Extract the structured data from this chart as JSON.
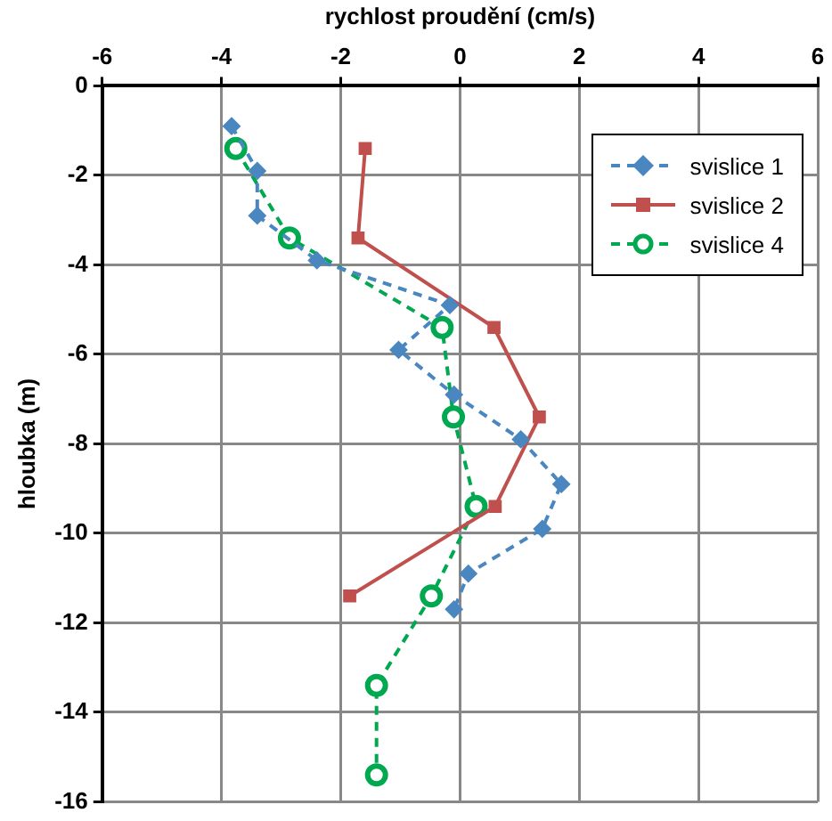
{
  "chart_data": {
    "type": "line",
    "xlabel": "rychlost proudění (cm/s)",
    "ylabel": "hloubka (m)",
    "xlim": [
      -6,
      6
    ],
    "xticks": [
      -6,
      -4,
      -2,
      0,
      2,
      4,
      6
    ],
    "ylim": [
      -16,
      0
    ],
    "yticks": [
      -16,
      -14,
      -12,
      -10,
      -8,
      -6,
      -4,
      -2,
      0
    ],
    "grid": true,
    "legend": "top right",
    "series": [
      {
        "name": "svislice 1",
        "color": "#4a87c1",
        "marker": "diamond",
        "line_style": "dashed",
        "x": [
          -3.83,
          -3.4,
          -3.4,
          -2.4,
          -0.17,
          -1.03,
          -0.1,
          1.02,
          1.7,
          1.38,
          0.14,
          -0.1
        ],
        "values": [
          -0.9,
          -1.9,
          -2.9,
          -3.9,
          -4.9,
          -5.9,
          -6.9,
          -7.9,
          -8.9,
          -9.9,
          -10.9,
          -11.7
        ]
      },
      {
        "name": "svislice 2",
        "color": "#c0504d",
        "marker": "square",
        "line_style": "solid",
        "x": [
          -1.59,
          -1.71,
          0.57,
          1.33,
          0.59,
          -1.85
        ],
        "values": [
          -1.4,
          -3.4,
          -5.4,
          -7.4,
          -9.4,
          -11.4
        ]
      },
      {
        "name": "svislice 4",
        "color": "#00a84f",
        "marker": "circle",
        "line_style": "dashed",
        "x": [
          -3.76,
          -2.86,
          -0.3,
          -0.11,
          0.27,
          -0.48,
          -1.4,
          -1.4
        ],
        "values": [
          -1.4,
          -3.4,
          -5.4,
          -7.4,
          -9.4,
          -11.4,
          -13.4,
          -15.4
        ]
      }
    ]
  }
}
